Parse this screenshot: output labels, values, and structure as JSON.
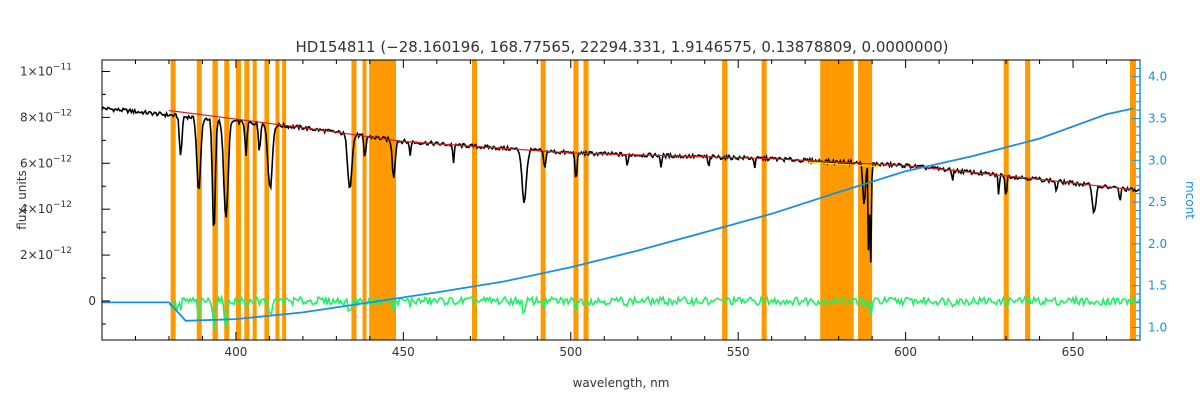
{
  "chart_data": {
    "type": "line",
    "title": "HD154811   (−28.160196, 168.77565, 22294.331, 1.9146575, 0.13878809, 0.0000000)",
    "xlabel": "wavelength, nm",
    "ylabel": "flux, units",
    "y2label": "mcont",
    "xlim": [
      360,
      670
    ],
    "ylim": [
      -1.7e-12,
      1.05e-11
    ],
    "y2lim": [
      0.85,
      4.2
    ],
    "xticks": [
      {
        "v": 400,
        "label": "400"
      },
      {
        "v": 450,
        "label": "450"
      },
      {
        "v": 500,
        "label": "500"
      },
      {
        "v": 550,
        "label": "550"
      },
      {
        "v": 600,
        "label": "600"
      },
      {
        "v": 650,
        "label": "650"
      }
    ],
    "yticks": [
      {
        "v": 0,
        "m": "0",
        "e": ""
      },
      {
        "v": 2e-12,
        "m": "2×10",
        "e": "−12"
      },
      {
        "v": 4e-12,
        "m": "4×10",
        "e": "−12"
      },
      {
        "v": 6e-12,
        "m": "6×10",
        "e": "−12"
      },
      {
        "v": 8e-12,
        "m": "8×10",
        "e": "−12"
      },
      {
        "v": 1e-11,
        "m": "1×10",
        "e": "−11"
      }
    ],
    "y2ticks": [
      {
        "v": 1.0,
        "label": "1.0"
      },
      {
        "v": 1.5,
        "label": "1.5"
      },
      {
        "v": 2.0,
        "label": "2.0"
      },
      {
        "v": 2.5,
        "label": "2.5"
      },
      {
        "v": 3.0,
        "label": "3.0"
      },
      {
        "v": 3.5,
        "label": "3.5"
      },
      {
        "v": 4.0,
        "label": "4.0"
      }
    ],
    "masked_regions": [
      [
        380.5,
        382.0
      ],
      [
        388.3,
        389.8
      ],
      [
        393.0,
        394.6
      ],
      [
        396.5,
        398.0
      ],
      [
        400.0,
        401.5
      ],
      [
        402.5,
        404.0
      ],
      [
        405.0,
        406.2
      ],
      [
        408.5,
        409.9
      ],
      [
        411.8,
        413.0
      ],
      [
        413.8,
        415.0
      ],
      [
        434.5,
        436.0
      ],
      [
        437.8,
        439.0
      ],
      [
        439.8,
        447.8
      ],
      [
        470.5,
        472.0
      ],
      [
        491.0,
        492.5
      ],
      [
        500.8,
        502.3
      ],
      [
        503.8,
        505.3
      ],
      [
        545.2,
        546.8
      ],
      [
        557.0,
        558.5
      ],
      [
        574.5,
        584.5
      ],
      [
        585.8,
        590.0
      ],
      [
        629.3,
        630.8
      ],
      [
        635.7,
        637.2
      ],
      [
        667.0,
        668.8
      ]
    ],
    "series": [
      {
        "role": "observed spectrum",
        "color": "#000000",
        "continuum": [
          [
            360,
            8.4e-12
          ],
          [
            380,
            8.1e-12
          ],
          [
            420,
            7.55e-12
          ],
          [
            450,
            6.95e-12
          ],
          [
            500,
            6.45e-12
          ],
          [
            560,
            6.2e-12
          ],
          [
            600,
            5.9e-12
          ],
          [
            640,
            5.3e-12
          ],
          [
            670,
            4.8e-12
          ]
        ],
        "lines": [
          [
            383.5,
            1.8e-12,
            0.5
          ],
          [
            388.9,
            3.2e-12,
            0.8
          ],
          [
            397.0,
            4.3e-12,
            0.9
          ],
          [
            393.4,
            5e-12,
            0.6
          ],
          [
            410.2,
            2.8e-12,
            0.9
          ],
          [
            403.0,
            1.5e-12,
            0.4
          ],
          [
            407.0,
            1.2e-12,
            0.4
          ],
          [
            434.0,
            2.3e-12,
            0.9
          ],
          [
            438.5,
            1e-12,
            0.4
          ],
          [
            447.1,
            1.6e-12,
            0.6
          ],
          [
            452.0,
            6e-13,
            0.3
          ],
          [
            465.0,
            8e-13,
            0.3
          ],
          [
            486.1,
            2.3e-12,
            0.9
          ],
          [
            492.2,
            8e-13,
            0.4
          ],
          [
            501.6,
            1.2e-12,
            0.4
          ],
          [
            516.9,
            6e-13,
            0.3
          ],
          [
            527.0,
            5e-13,
            0.3
          ],
          [
            541.2,
            5e-13,
            0.3
          ],
          [
            555.0,
            4e-13,
            0.3
          ],
          [
            587.6,
            1.9e-12,
            0.5
          ],
          [
            589.0,
            4.5e-12,
            0.25
          ],
          [
            589.6,
            4.3e-12,
            0.25
          ],
          [
            614.0,
            4e-13,
            0.3
          ],
          [
            627.8,
            8e-13,
            0.3
          ],
          [
            630.0,
            1e-12,
            0.3
          ],
          [
            645.0,
            5e-13,
            0.3
          ],
          [
            656.3,
            1.2e-12,
            0.7
          ],
          [
            664.0,
            6e-13,
            0.3
          ]
        ]
      },
      {
        "role": "model spectrum",
        "color": "#cc2222",
        "points": [
          [
            380,
            8.3e-12
          ],
          [
            420,
            7.55e-12
          ],
          [
            450,
            6.95e-12
          ],
          [
            500,
            6.45e-12
          ],
          [
            560,
            6.2e-12
          ],
          [
            600,
            5.9e-12
          ],
          [
            640,
            5.3e-12
          ],
          [
            668,
            4.85e-12
          ]
        ]
      },
      {
        "role": "interpolated region",
        "color": "#e6e600",
        "points": [
          [
            571,
            6.05e-12
          ],
          [
            592,
            5.85e-12
          ]
        ]
      },
      {
        "role": "residuals",
        "color": "#22ee66",
        "baseline": 0,
        "x_start": 380,
        "x_end": 670
      },
      {
        "role": "mcont",
        "color": "#1a8fe0",
        "axis": "right",
        "points": [
          [
            360,
            1.3
          ],
          [
            380,
            1.3
          ],
          [
            385,
            1.08
          ],
          [
            400,
            1.1
          ],
          [
            420,
            1.18
          ],
          [
            440,
            1.3
          ],
          [
            460,
            1.42
          ],
          [
            480,
            1.55
          ],
          [
            500,
            1.72
          ],
          [
            520,
            1.92
          ],
          [
            540,
            2.14
          ],
          [
            560,
            2.36
          ],
          [
            580,
            2.62
          ],
          [
            600,
            2.87
          ],
          [
            620,
            3.05
          ],
          [
            640,
            3.26
          ],
          [
            660,
            3.55
          ],
          [
            668,
            3.62
          ]
        ]
      }
    ]
  }
}
